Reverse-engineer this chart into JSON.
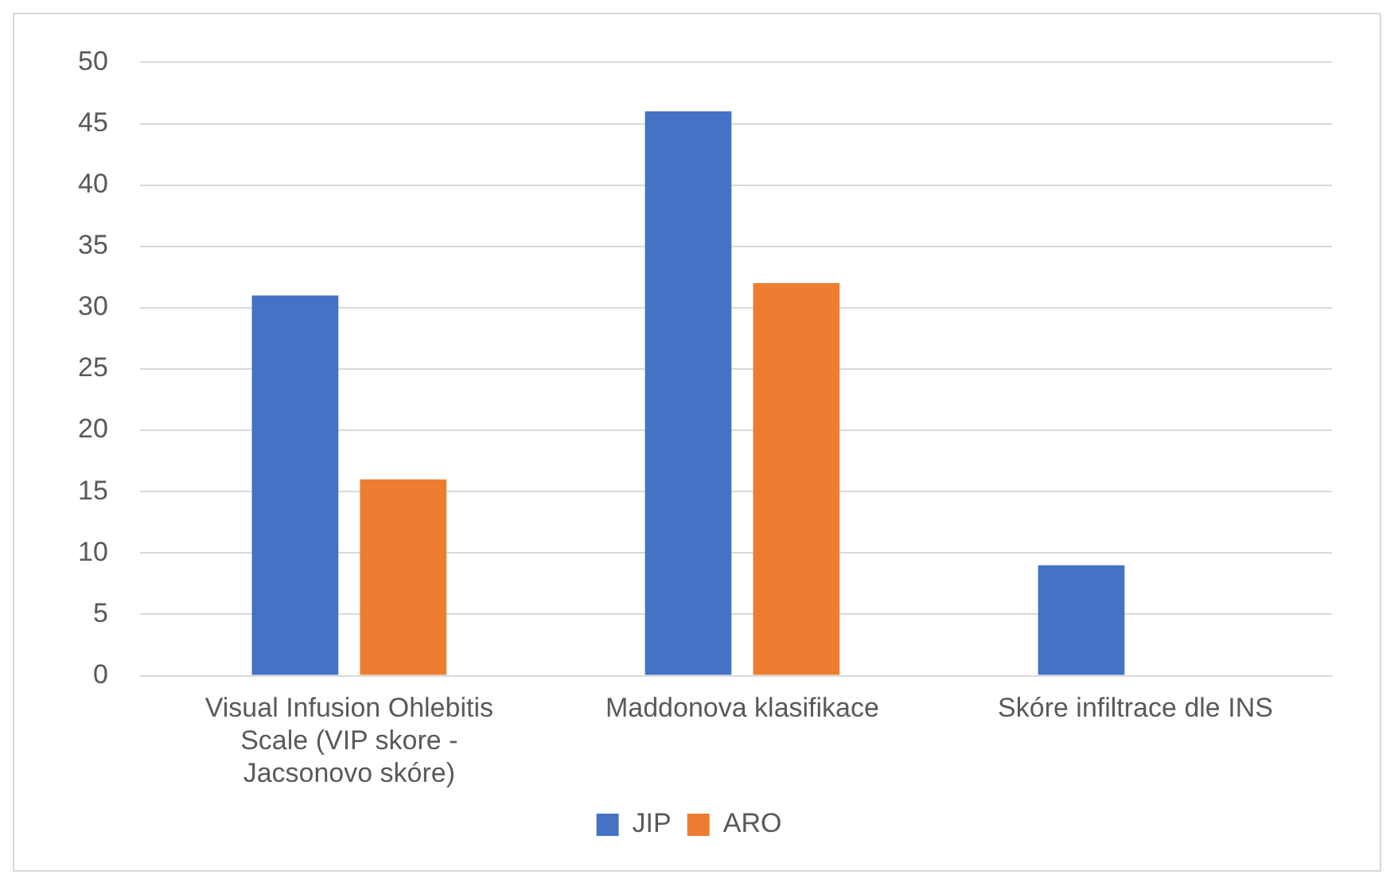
{
  "chart_data": {
    "type": "bar",
    "categories": [
      "Visual Infusion Ohlebitis Scale (VIP skore - Jacsonovo skóre)",
      "Maddonova klasifikace",
      "Skóre infiltrace dle INS"
    ],
    "series": [
      {
        "name": "JIP",
        "color": "#4472c4",
        "values": [
          31,
          46,
          9
        ]
      },
      {
        "name": "ARO",
        "color": "#ed7d31",
        "values": [
          16,
          32,
          0
        ]
      }
    ],
    "ylim": [
      0,
      50
    ],
    "yticks": [
      0,
      5,
      10,
      15,
      20,
      25,
      30,
      35,
      40,
      45,
      50
    ],
    "grid": "y",
    "legend": "bottom"
  }
}
